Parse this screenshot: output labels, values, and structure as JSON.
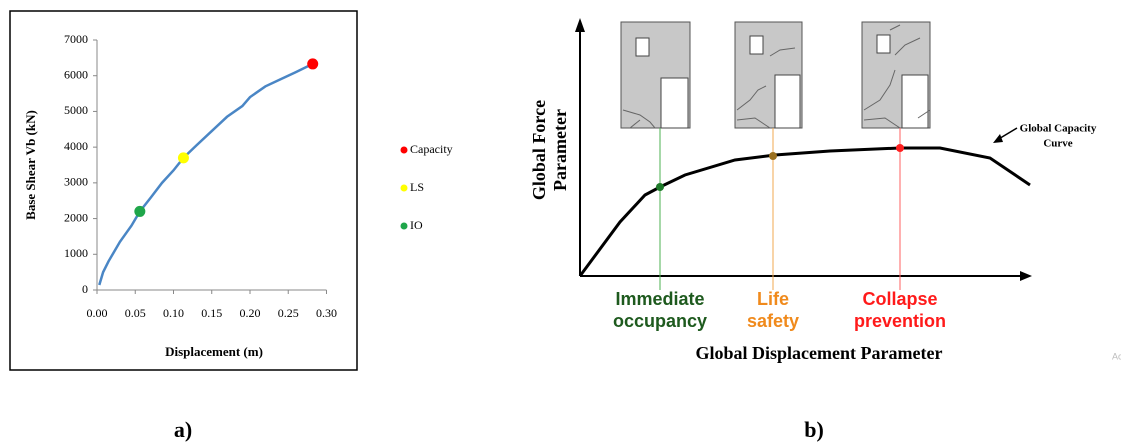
{
  "chart_data": {
    "type": "line",
    "x_label": "Displacement (m)",
    "y_label": "Base Shear Vb (kN)",
    "x": [
      0.003,
      0.008,
      0.015,
      0.03,
      0.045,
      0.056,
      0.07,
      0.085,
      0.1,
      0.113,
      0.13,
      0.15,
      0.17,
      0.19,
      0.2,
      0.22,
      0.24,
      0.26,
      0.282
    ],
    "values": [
      140,
      500,
      800,
      1350,
      1800,
      2200,
      2580,
      3000,
      3350,
      3700,
      4050,
      4450,
      4850,
      5150,
      5400,
      5700,
      5900,
      6100,
      6330
    ],
    "color": "#4a86c5",
    "points": [
      {
        "name": "Capacity",
        "color": "#ff0000",
        "x": 0.282,
        "value": 6330
      },
      {
        "name": "LS",
        "color": "#ffff00",
        "x": 0.113,
        "value": 3700
      },
      {
        "name": "IO",
        "color": "#1fa64a",
        "x": 0.056,
        "value": 2200
      }
    ],
    "xlim": [
      0,
      0.3
    ],
    "xticks": [
      {
        "value": 0,
        "label": "0.00"
      },
      {
        "value": 0.05,
        "label": "0.05"
      },
      {
        "value": 0.1,
        "label": "0.10"
      },
      {
        "value": 0.15,
        "label": "0.15"
      },
      {
        "value": 0.2,
        "label": "0.20"
      },
      {
        "value": 0.25,
        "label": "0.25"
      },
      {
        "value": 0.3,
        "label": "0.30"
      }
    ],
    "ylim": [
      0,
      7000
    ],
    "yticks": [
      0,
      1000,
      2000,
      3000,
      4000,
      5000,
      6000,
      7000
    ]
  },
  "diagram": {
    "y_label": [
      "Global Force",
      "Parameter"
    ],
    "x_label": "Global Displacement Parameter",
    "curve_label": [
      "Global Capacity",
      "Curve"
    ],
    "levels": [
      {
        "label": [
          "Immediate",
          "occupancy"
        ],
        "color": "#1e5a1e"
      },
      {
        "label": [
          "Life",
          "safety"
        ],
        "color": "#f08a1c"
      },
      {
        "label": [
          "Collapse",
          "prevention"
        ],
        "color": "#ff1a1a"
      }
    ]
  },
  "captions": [
    "a)",
    "b)"
  ],
  "watermark": "Ac"
}
